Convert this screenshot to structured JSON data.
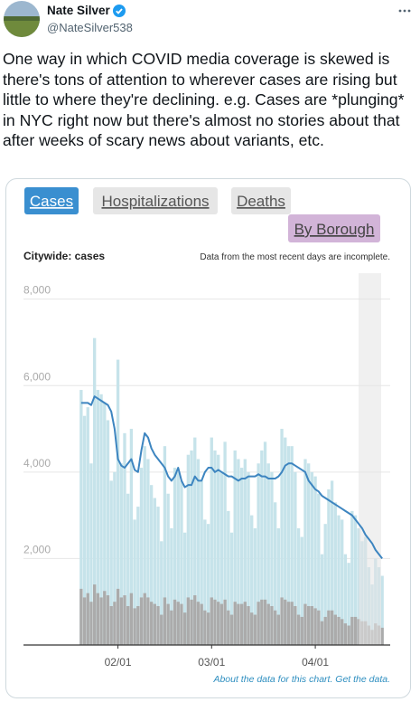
{
  "tweet": {
    "author": "Nate Silver",
    "handle": "@NateSilver538",
    "text": "One way in which COVID media coverage is skewed is there's tons of attention to wherever cases are rising but little to where they're declining. e.g. Cases are *plunging* in NYC right now but there's almost no stories about that after weeks of scary news about variants, etc."
  },
  "tabs": [
    "Cases",
    "Hospitalizations",
    "Deaths",
    "By Borough"
  ],
  "chart_data": {
    "type": "bar",
    "title": "Citywide: cases",
    "subtitle": "Data from the most recent days are incomplete.",
    "footnote": "About the data for this chart. Get the data.",
    "x": [
      null,
      null,
      null,
      null,
      null,
      null,
      null,
      null,
      null,
      null,
      null,
      "02/01",
      null,
      null,
      null,
      null,
      null,
      null,
      null,
      null,
      null,
      null,
      null,
      null,
      null,
      null,
      null,
      null,
      null,
      null,
      null,
      null,
      null,
      null,
      null,
      null,
      null,
      null,
      null,
      "03/01",
      null,
      null,
      null,
      null,
      null,
      null,
      null,
      null,
      null,
      null,
      null,
      null,
      null,
      null,
      null,
      null,
      null,
      null,
      null,
      null,
      null,
      null,
      null,
      null,
      null,
      null,
      null,
      null,
      null,
      null,
      "04/01",
      null,
      null,
      null,
      null,
      null,
      null,
      null,
      null,
      null,
      null,
      null,
      null,
      null,
      null,
      null,
      null,
      null,
      null,
      null,
      null
    ],
    "ylim": [
      0,
      8600
    ],
    "yticks": [
      {
        "value": 2000,
        "label": "2,000"
      },
      {
        "value": 4000,
        "label": "4,000"
      },
      {
        "value": 6000,
        "label": "6,000"
      },
      {
        "value": 8000,
        "label": "8,000"
      }
    ],
    "grid": true,
    "series": [
      {
        "color": "#c6e3ea",
        "values": [
          5900,
          5300,
          5500,
          4200,
          7100,
          5900,
          5800,
          5600,
          5200,
          3800,
          4000,
          6600,
          4200,
          4900,
          3500,
          5000,
          2900,
          3200,
          4100,
          4600,
          4300,
          3700,
          3400,
          3200,
          2400,
          4600,
          3500,
          2700,
          4100,
          4000,
          3800,
          2600,
          4400,
          4500,
          4800,
          4300,
          3800,
          2900,
          2800,
          4800,
          4500,
          4400,
          4000,
          4700,
          3100,
          2600,
          4500,
          4300,
          4100,
          4300,
          4000,
          3000,
          2700,
          4200,
          4500,
          4700,
          4200,
          4000,
          3300,
          2700,
          5000,
          4800,
          4600,
          4600,
          4000,
          2700,
          2500,
          4300,
          4200,
          4000,
          3900,
          3500,
          2100,
          2800,
          3600,
          3800,
          3300,
          3000,
          2900,
          2100,
          1900,
          3100,
          3000,
          2700,
          2400,
          2500,
          1800,
          1400,
          2000,
          1800,
          1600
        ]
      },
      {
        "color": "#ababab",
        "values": [
          1300,
          1100,
          1200,
          1000,
          1400,
          1200,
          1100,
          1250,
          1150,
          900,
          1000,
          1300,
          1100,
          1150,
          900,
          1200,
          850,
          900,
          1100,
          1200,
          1100,
          1000,
          950,
          900,
          700,
          1100,
          950,
          800,
          1050,
          1000,
          950,
          750,
          1100,
          1050,
          1150,
          1000,
          950,
          800,
          750,
          1100,
          1050,
          1000,
          950,
          1050,
          800,
          700,
          1000,
          950,
          950,
          1000,
          900,
          750,
          700,
          1000,
          1050,
          1050,
          950,
          900,
          800,
          700,
          1100,
          1050,
          1000,
          1000,
          900,
          700,
          650,
          950,
          900,
          900,
          850,
          800,
          550,
          650,
          800,
          800,
          700,
          650,
          600,
          500,
          450,
          650,
          650,
          600,
          550,
          550,
          450,
          350,
          500,
          450,
          400
        ]
      },
      {
        "type": "line",
        "color": "#3d85c0",
        "values": [
          5600,
          5600,
          5600,
          5550,
          5750,
          5700,
          5650,
          5600,
          5550,
          5400,
          5000,
          4300,
          4150,
          4100,
          4200,
          4300,
          4050,
          4000,
          4500,
          4900,
          4800,
          4550,
          4400,
          4300,
          4200,
          4100,
          3900,
          3800,
          3900,
          4100,
          3800,
          3650,
          3700,
          3700,
          3900,
          3800,
          3800,
          4000,
          4100,
          4100,
          4000,
          4050,
          4000,
          3950,
          3900,
          3900,
          3850,
          3800,
          3850,
          3850,
          3900,
          3900,
          3900,
          3950,
          3900,
          3900,
          3850,
          3850,
          3850,
          3900,
          4000,
          4150,
          4200,
          4200,
          4150,
          4100,
          4050,
          4000,
          3800,
          3700,
          3600,
          3550,
          3450,
          3400,
          3350,
          3300,
          3250,
          3200,
          3150,
          3100,
          3050,
          3000,
          2900,
          2800,
          2700,
          2550,
          2450,
          2350,
          2200,
          2100,
          2000
        ]
      }
    ]
  }
}
